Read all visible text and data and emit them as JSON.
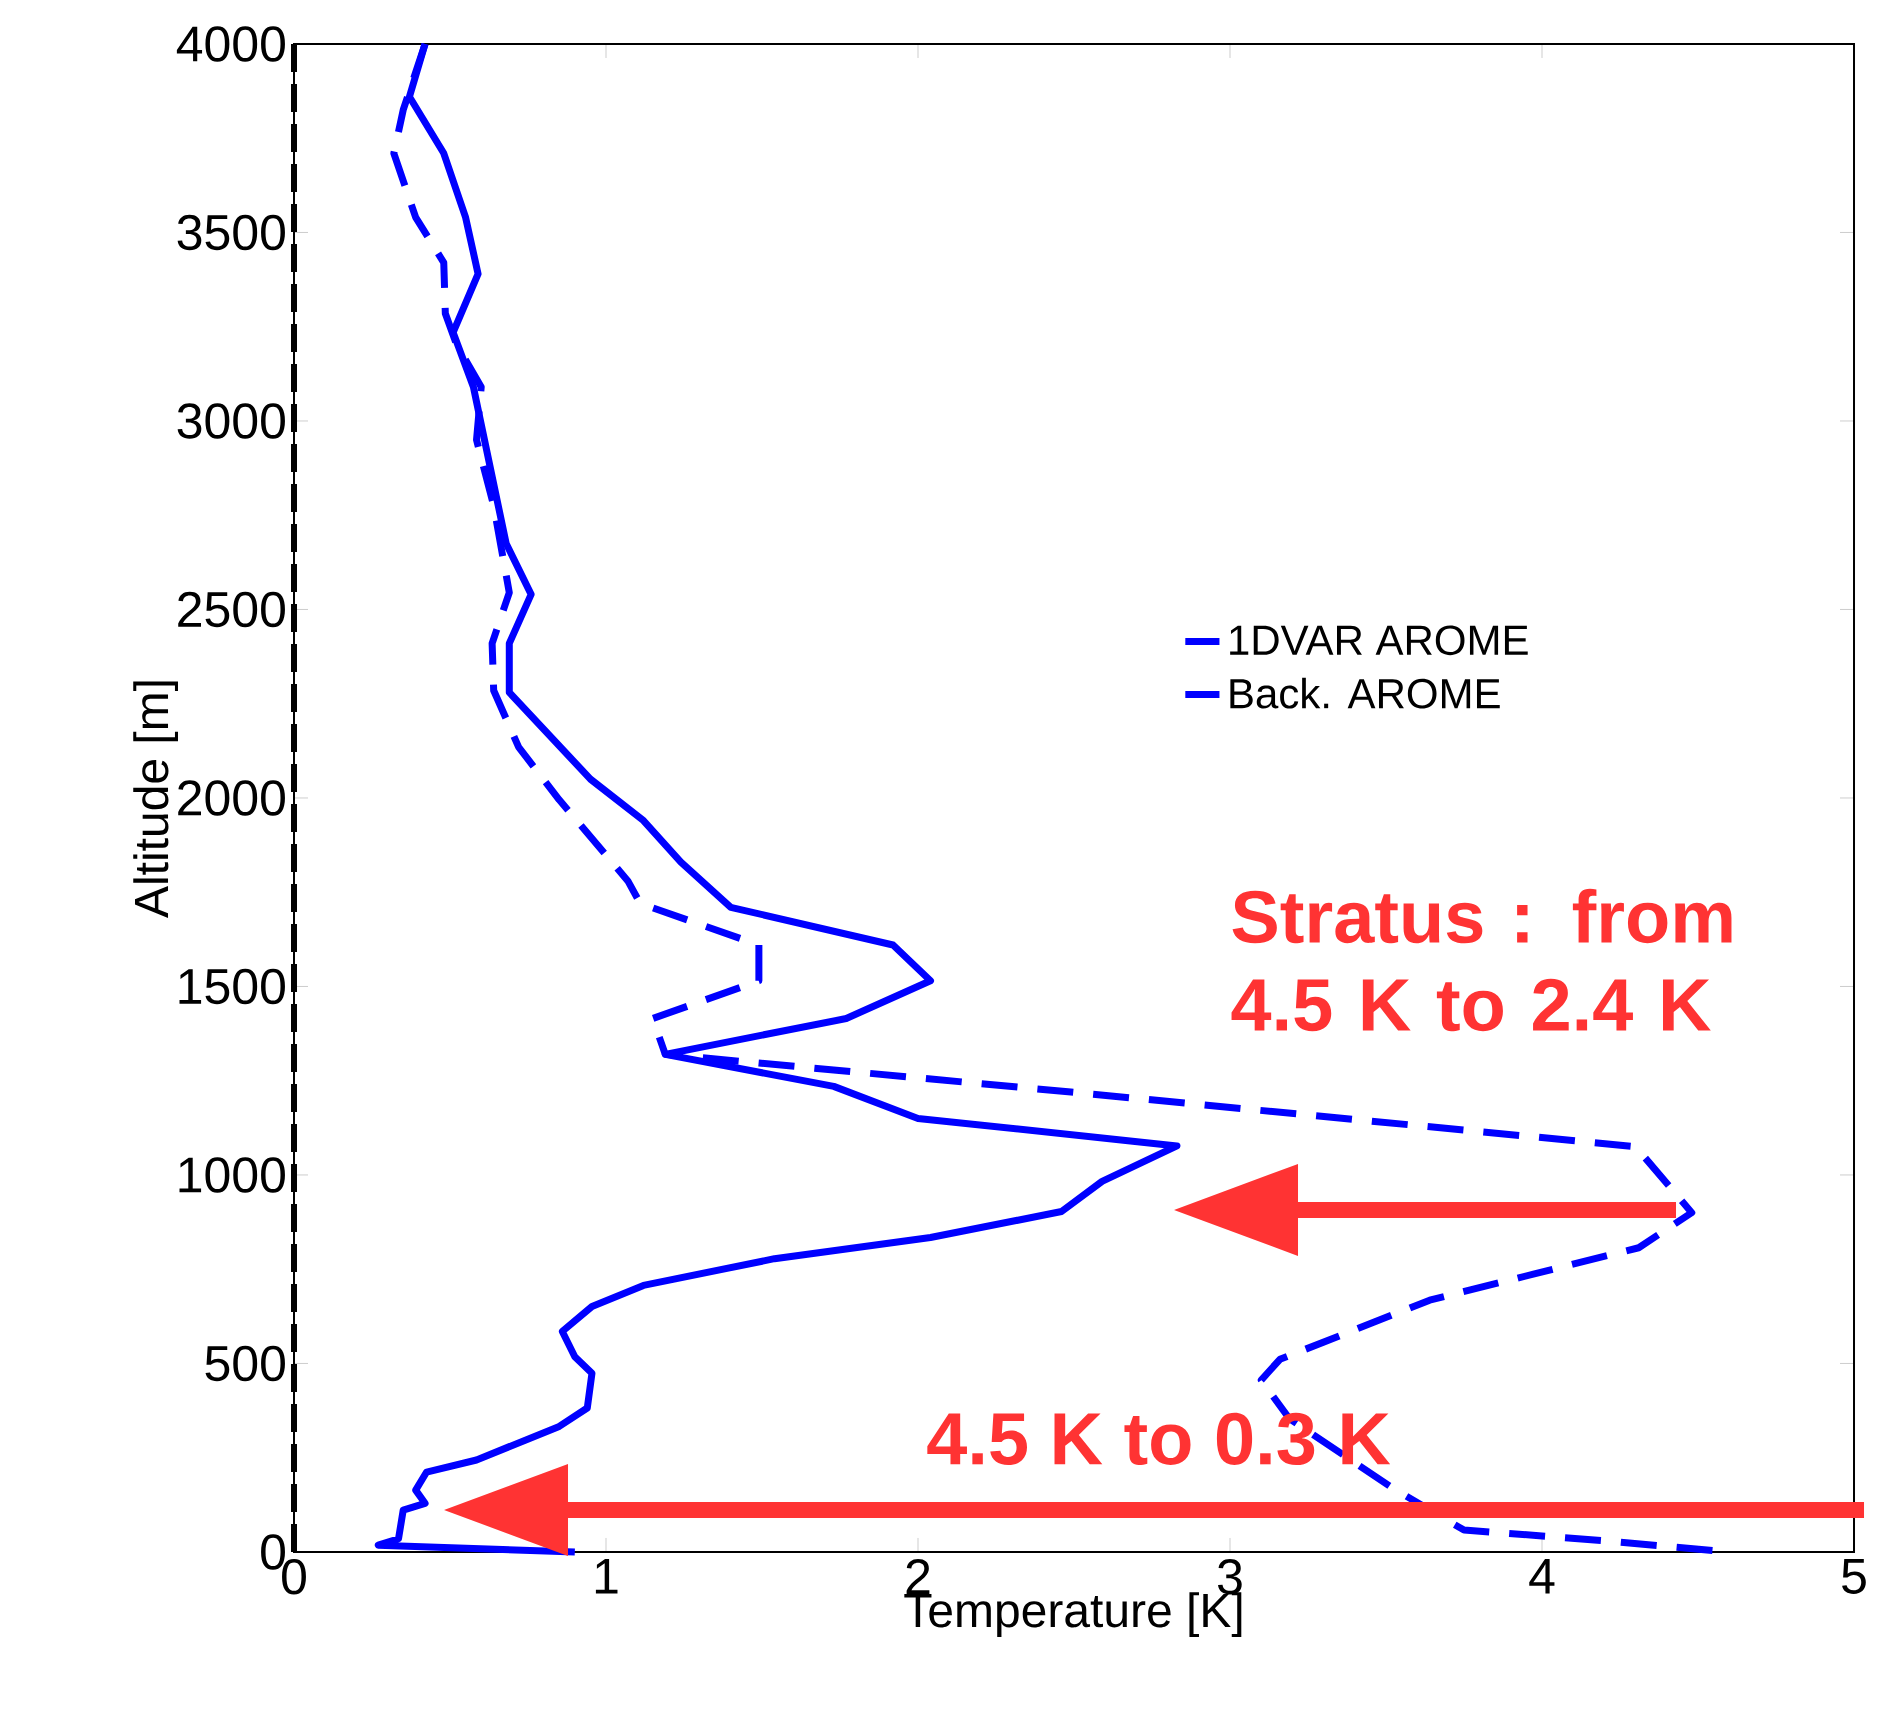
{
  "chart_data": {
    "type": "line",
    "xlabel": "Temperature [K]",
    "ylabel": "Altitude [m]",
    "xlim": [
      0,
      5
    ],
    "ylim": [
      0,
      4000
    ],
    "xticks": [
      0,
      1,
      2,
      3,
      4,
      5
    ],
    "yticks": [
      0,
      500,
      1000,
      1500,
      2000,
      2500,
      3000,
      3500,
      4000
    ],
    "grid": false,
    "legend": "right",
    "marker": "none",
    "series": [
      {
        "name": "1DVAR AROME",
        "color": "#0000ff",
        "line_style": "solid",
        "x": [
          0.42,
          0.37,
          0.48,
          0.55,
          0.59,
          0.51,
          0.575,
          0.68,
          0.76,
          0.69,
          0.69,
          0.95,
          1.12,
          1.24,
          1.4,
          1.92,
          2.04,
          1.77,
          1.19,
          1.73,
          2.0,
          2.83,
          2.59,
          2.46,
          2.04,
          1.54,
          1.12,
          0.955,
          0.86,
          0.9,
          0.955,
          0.94,
          0.85,
          0.585,
          0.425,
          0.39,
          0.42,
          0.35,
          0.335,
          0.27,
          0.9
        ],
        "values": [
          4000,
          3860,
          3710,
          3540,
          3390,
          3235,
          3090,
          2675,
          2540,
          2410,
          2280,
          2050,
          1940,
          1830,
          1710,
          1610,
          1515,
          1415,
          1320,
          1235,
          1150,
          1077,
          983,
          903,
          834,
          778,
          707,
          651,
          585,
          518,
          474,
          382,
          333,
          244,
          212,
          164,
          129,
          111,
          35,
          18,
          0
        ]
      },
      {
        "name": "Back. AROME",
        "color": "#0000ff",
        "line_style": "dashed",
        "x": [
          0.42,
          0.35,
          0.32,
          0.39,
          0.48,
          0.485,
          0.52,
          0.6,
          0.585,
          0.64,
          0.69,
          0.635,
          0.64,
          0.72,
          0.85,
          1.07,
          1.11,
          1.49,
          1.49,
          1.15,
          1.19,
          2.49,
          4.3,
          4.48,
          4.31,
          3.64,
          3.16,
          3.1,
          3.19,
          3.52,
          3.75,
          4.2,
          4.6
        ],
        "values": [
          4000,
          3825,
          3710,
          3540,
          3420,
          3285,
          3205,
          3090,
          2950,
          2775,
          2545,
          2410,
          2285,
          2135,
          1995,
          1780,
          1720,
          1610,
          1515,
          1415,
          1320,
          1220,
          1075,
          900,
          807,
          668,
          511,
          456,
          354,
          170,
          58,
          30,
          0
        ]
      }
    ],
    "ref_lines": [
      {
        "axis": "x",
        "value": 0,
        "color": "#000000",
        "line_style": "dashed"
      }
    ],
    "annotations": [
      "Stratus : from 4.5 K to 2.4 K",
      "4.5 K to 0.3 K"
    ]
  }
}
